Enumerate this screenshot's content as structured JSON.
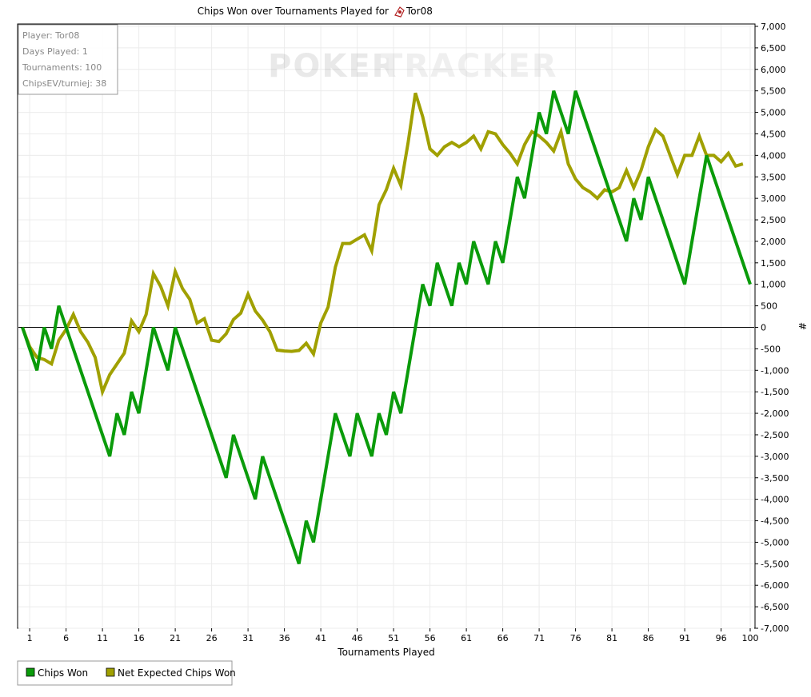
{
  "chart_data": {
    "type": "line",
    "title": "Chips Won over Tournaments Played for",
    "player_name": "Tor08",
    "watermark_left": "POKER",
    "watermark_right": "TRACKER",
    "xlabel": "Tournaments Played",
    "ylabel": "#",
    "xlim": [
      0,
      100
    ],
    "ylim": [
      -7000,
      7000
    ],
    "y_tick_step": 500,
    "x_ticks": [
      1,
      6,
      11,
      16,
      21,
      26,
      31,
      36,
      41,
      46,
      51,
      56,
      61,
      66,
      71,
      76,
      81,
      86,
      91,
      96,
      100
    ],
    "grid": true,
    "legend_position": "bottom-left",
    "info_box": {
      "player": "Player: Tor08",
      "days_played": "Days Played: 1",
      "tournaments": "Tournaments: 100",
      "chips_ev": "ChipsEV/turniej: 38"
    },
    "series": [
      {
        "name": "Chips Won",
        "color": "#0a9b0a",
        "points": [
          [
            0,
            0
          ],
          [
            2,
            -1000
          ],
          [
            3,
            0
          ],
          [
            4,
            -500
          ],
          [
            5,
            500
          ],
          [
            12,
            -3000
          ],
          [
            13,
            -2000
          ],
          [
            14,
            -2500
          ],
          [
            15,
            -1500
          ],
          [
            16,
            -2000
          ],
          [
            18,
            0
          ],
          [
            20,
            -1000
          ],
          [
            21,
            0
          ],
          [
            28,
            -3500
          ],
          [
            29,
            -2500
          ],
          [
            32,
            -4000
          ],
          [
            33,
            -3000
          ],
          [
            38,
            -5500
          ],
          [
            39,
            -4500
          ],
          [
            40,
            -5000
          ],
          [
            43,
            -2000
          ],
          [
            45,
            -3000
          ],
          [
            46,
            -2000
          ],
          [
            48,
            -3000
          ],
          [
            49,
            -2000
          ],
          [
            50,
            -2500
          ],
          [
            51,
            -1500
          ],
          [
            52,
            -2000
          ],
          [
            55,
            1000
          ],
          [
            56,
            500
          ],
          [
            57,
            1500
          ],
          [
            59,
            500
          ],
          [
            60,
            1500
          ],
          [
            61,
            1000
          ],
          [
            62,
            2000
          ],
          [
            64,
            1000
          ],
          [
            65,
            2000
          ],
          [
            66,
            1500
          ],
          [
            68,
            3500
          ],
          [
            69,
            3000
          ],
          [
            71,
            5000
          ],
          [
            72,
            4500
          ],
          [
            73,
            5500
          ],
          [
            75,
            4500
          ],
          [
            76,
            5500
          ],
          [
            83,
            2000
          ],
          [
            84,
            3000
          ],
          [
            85,
            2500
          ],
          [
            86,
            3500
          ],
          [
            91,
            1000
          ],
          [
            94,
            4000
          ],
          [
            100,
            1000
          ]
        ]
      },
      {
        "name": "Net Expected Chips Won",
        "color": "#a0a000",
        "points": [
          [
            0,
            0
          ],
          [
            1,
            -450
          ],
          [
            2,
            -700
          ],
          [
            3,
            -750
          ],
          [
            4,
            -850
          ],
          [
            5,
            -300
          ],
          [
            6,
            -50
          ],
          [
            7,
            300
          ],
          [
            8,
            -100
          ],
          [
            9,
            -350
          ],
          [
            10,
            -700
          ],
          [
            11,
            -1500
          ],
          [
            12,
            -1100
          ],
          [
            13,
            -850
          ],
          [
            14,
            -600
          ],
          [
            15,
            150
          ],
          [
            16,
            -100
          ],
          [
            17,
            300
          ],
          [
            18,
            1250
          ],
          [
            19,
            950
          ],
          [
            20,
            500
          ],
          [
            21,
            1300
          ],
          [
            22,
            900
          ],
          [
            23,
            650
          ],
          [
            24,
            100
          ],
          [
            25,
            200
          ],
          [
            26,
            -300
          ],
          [
            27,
            -330
          ],
          [
            28,
            -150
          ],
          [
            29,
            180
          ],
          [
            30,
            330
          ],
          [
            31,
            770
          ],
          [
            32,
            380
          ],
          [
            33,
            170
          ],
          [
            34,
            -100
          ],
          [
            35,
            -530
          ],
          [
            36,
            -550
          ],
          [
            37,
            -560
          ],
          [
            38,
            -540
          ],
          [
            39,
            -370
          ],
          [
            40,
            -620
          ],
          [
            41,
            100
          ],
          [
            42,
            470
          ],
          [
            43,
            1400
          ],
          [
            44,
            1950
          ],
          [
            45,
            1950
          ],
          [
            46,
            2050
          ],
          [
            47,
            2150
          ],
          [
            48,
            1780
          ],
          [
            49,
            2850
          ],
          [
            50,
            3200
          ],
          [
            51,
            3700
          ],
          [
            52,
            3300
          ],
          [
            53,
            4300
          ],
          [
            54,
            5450
          ],
          [
            55,
            4900
          ],
          [
            56,
            4150
          ],
          [
            57,
            4000
          ],
          [
            58,
            4200
          ],
          [
            59,
            4300
          ],
          [
            60,
            4200
          ],
          [
            61,
            4300
          ],
          [
            62,
            4450
          ],
          [
            63,
            4150
          ],
          [
            64,
            4550
          ],
          [
            65,
            4500
          ],
          [
            66,
            4250
          ],
          [
            67,
            4050
          ],
          [
            68,
            3800
          ],
          [
            69,
            4250
          ],
          [
            70,
            4550
          ],
          [
            71,
            4450
          ],
          [
            72,
            4300
          ],
          [
            73,
            4100
          ],
          [
            74,
            4550
          ],
          [
            75,
            3800
          ],
          [
            76,
            3450
          ],
          [
            77,
            3250
          ],
          [
            78,
            3150
          ],
          [
            79,
            3000
          ],
          [
            80,
            3200
          ],
          [
            81,
            3150
          ],
          [
            82,
            3250
          ],
          [
            83,
            3650
          ],
          [
            84,
            3250
          ],
          [
            85,
            3650
          ],
          [
            86,
            4200
          ],
          [
            87,
            4600
          ],
          [
            88,
            4450
          ],
          [
            89,
            4000
          ],
          [
            90,
            3550
          ],
          [
            91,
            4000
          ],
          [
            92,
            4000
          ],
          [
            93,
            4450
          ],
          [
            94,
            4000
          ],
          [
            95,
            4000
          ],
          [
            96,
            3850
          ],
          [
            97,
            4050
          ],
          [
            98,
            3750
          ],
          [
            99,
            3800
          ]
        ]
      }
    ]
  }
}
